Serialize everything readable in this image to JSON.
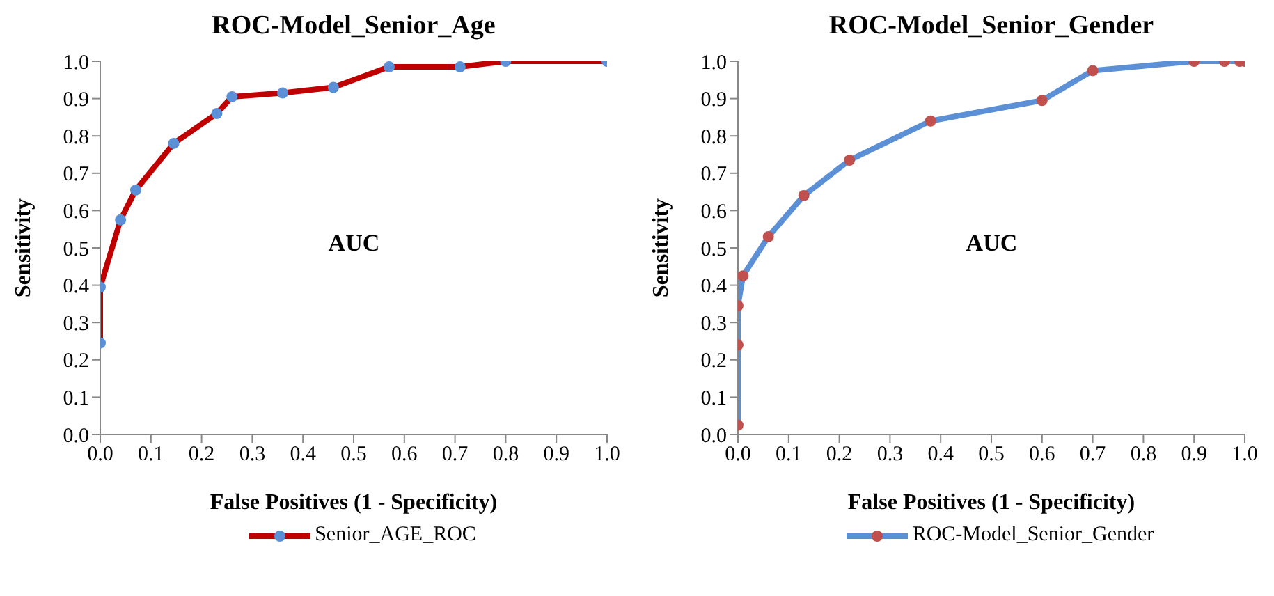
{
  "chart_data": [
    {
      "type": "line",
      "title": "ROC-Model_Senior_Age",
      "xlabel": "False Positives (1 - Specificity)",
      "ylabel": "Sensitivity",
      "annotations": [
        "AUC"
      ],
      "legend": "bottom",
      "marker": "circle",
      "line_style": "solid",
      "xlim": [
        0,
        1
      ],
      "ylim": [
        0,
        1
      ],
      "xticks": [
        {
          "value": 0,
          "label": "0.0"
        },
        {
          "value": 0.1,
          "label": "0.1"
        },
        {
          "value": 0.2,
          "label": "0.2"
        },
        {
          "value": 0.3,
          "label": "0.3"
        },
        {
          "value": 0.4,
          "label": "0.4"
        },
        {
          "value": 0.5,
          "label": "0.5"
        },
        {
          "value": 0.6,
          "label": "0.6"
        },
        {
          "value": 0.7,
          "label": "0.7"
        },
        {
          "value": 0.8,
          "label": "0.8"
        },
        {
          "value": 0.9,
          "label": "0.9"
        },
        {
          "value": 1,
          "label": "1.0"
        }
      ],
      "yticks": [
        {
          "value": 0,
          "label": "0.0"
        },
        {
          "value": 0.1,
          "label": "0.1"
        },
        {
          "value": 0.2,
          "label": "0.2"
        },
        {
          "value": 0.3,
          "label": "0.3"
        },
        {
          "value": 0.4,
          "label": "0.4"
        },
        {
          "value": 0.5,
          "label": "0.5"
        },
        {
          "value": 0.6,
          "label": "0.6"
        },
        {
          "value": 0.7,
          "label": "0.7"
        },
        {
          "value": 0.8,
          "label": "0.8"
        },
        {
          "value": 0.9,
          "label": "0.9"
        },
        {
          "value": 1,
          "label": "1.0"
        }
      ],
      "series": [
        {
          "name": "Senior_AGE_ROC",
          "color": "#c00000",
          "colors": [
            "#5b8fd6",
            "#5b8fd6",
            "#5b8fd6",
            "#5b8fd6",
            "#5b8fd6",
            "#5b8fd6",
            "#5b8fd6",
            "#5b8fd6",
            "#5b8fd6",
            "#5b8fd6",
            "#5b8fd6",
            "#5b8fd6",
            "#5b8fd6"
          ],
          "x": [
            0,
            0,
            0.04,
            0.07,
            0.145,
            0.23,
            0.26,
            0.36,
            0.46,
            0.57,
            0.71,
            0.8,
            1.0
          ],
          "values": [
            0.245,
            0.395,
            0.575,
            0.655,
            0.78,
            0.86,
            0.905,
            0.915,
            0.93,
            0.985,
            0.985,
            1.0,
            1.0
          ]
        }
      ]
    },
    {
      "type": "line",
      "title": "ROC-Model_Senior_Gender",
      "xlabel": "False Positives (1 - Specificity)",
      "ylabel": "Sensitivity",
      "annotations": [
        "AUC"
      ],
      "legend": "bottom",
      "marker": "circle",
      "line_style": "solid",
      "xlim": [
        0,
        1
      ],
      "ylim": [
        0,
        1
      ],
      "xticks": [
        {
          "value": 0,
          "label": "0.0"
        },
        {
          "value": 0.1,
          "label": "0.1"
        },
        {
          "value": 0.2,
          "label": "0.2"
        },
        {
          "value": 0.3,
          "label": "0.3"
        },
        {
          "value": 0.4,
          "label": "0.4"
        },
        {
          "value": 0.5,
          "label": "0.5"
        },
        {
          "value": 0.6,
          "label": "0.6"
        },
        {
          "value": 0.7,
          "label": "0.7"
        },
        {
          "value": 0.8,
          "label": "0.8"
        },
        {
          "value": 0.9,
          "label": "0.9"
        },
        {
          "value": 1,
          "label": "1.0"
        }
      ],
      "yticks": [
        {
          "value": 0,
          "label": "0.0"
        },
        {
          "value": 0.1,
          "label": "0.1"
        },
        {
          "value": 0.2,
          "label": "0.2"
        },
        {
          "value": 0.3,
          "label": "0.3"
        },
        {
          "value": 0.4,
          "label": "0.4"
        },
        {
          "value": 0.5,
          "label": "0.5"
        },
        {
          "value": 0.6,
          "label": "0.6"
        },
        {
          "value": 0.7,
          "label": "0.7"
        },
        {
          "value": 0.8,
          "label": "0.8"
        },
        {
          "value": 0.9,
          "label": "0.9"
        },
        {
          "value": 1,
          "label": "1.0"
        }
      ],
      "series": [
        {
          "name": "ROC-Model_Senior_Gender",
          "color": "#5b8fd6",
          "colors": [
            "#c0504d",
            "#c0504d",
            "#c0504d",
            "#c0504d",
            "#c0504d",
            "#c0504d",
            "#c0504d",
            "#c0504d",
            "#c0504d",
            "#c0504d",
            "#c0504d",
            "#c0504d",
            "#c0504d",
            "#c0504d"
          ],
          "x": [
            0,
            0,
            0,
            0.01,
            0.06,
            0.13,
            0.22,
            0.38,
            0.6,
            0.7,
            0.9,
            0.96,
            0.99,
            1.0
          ],
          "values": [
            0.025,
            0.24,
            0.345,
            0.425,
            0.53,
            0.64,
            0.735,
            0.84,
            0.895,
            0.975,
            1.0,
            1.0,
            1.0,
            1.0
          ]
        }
      ]
    }
  ]
}
